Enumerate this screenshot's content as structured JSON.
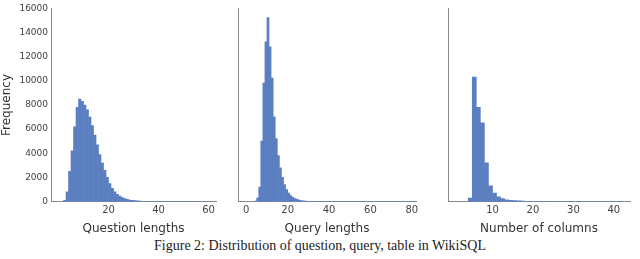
{
  "caption": "Figure 2: Distribution of question, query, table in WikiSQL",
  "chart_data": [
    {
      "type": "histogram",
      "x_label": "Question lengths",
      "y_label": "Frequency",
      "color": "#5b7fc0",
      "grid": false,
      "bins": [
        2,
        3,
        4,
        5,
        6,
        7,
        8,
        9,
        10,
        11,
        12,
        13,
        14,
        15,
        16,
        17,
        18,
        19,
        20,
        21,
        22,
        23,
        24,
        25,
        26,
        27,
        28,
        29,
        30,
        31,
        32,
        33,
        34,
        35,
        36,
        37,
        38,
        39,
        40,
        41,
        42,
        43,
        44,
        45,
        46,
        47,
        48,
        49,
        50,
        51,
        52,
        53,
        54,
        55,
        56,
        57,
        58
      ],
      "values": [
        100,
        800,
        2500,
        4200,
        6200,
        7800,
        8500,
        8300,
        8000,
        7600,
        7000,
        6300,
        5500,
        4700,
        3900,
        3200,
        2600,
        2000,
        1500,
        1100,
        800,
        600,
        450,
        330,
        250,
        180,
        130,
        100,
        75,
        55,
        40,
        30,
        22,
        16,
        12,
        9,
        7,
        5,
        4,
        3,
        3,
        2,
        2,
        1,
        1,
        1,
        1,
        1,
        0,
        0,
        1,
        0,
        0,
        0,
        0,
        1
      ],
      "xlim": [
        -3,
        63
      ],
      "xticks": [
        20,
        40,
        60
      ],
      "ylim": [
        0,
        16000
      ],
      "yticks": [
        0,
        2000,
        4000,
        6000,
        8000,
        10000,
        12000,
        14000,
        16000
      ]
    },
    {
      "type": "histogram",
      "x_label": "Query lengths",
      "color": "#5b7fc0",
      "grid": false,
      "tick_labels": "x",
      "bins": [
        4,
        5,
        6,
        7,
        8,
        9,
        10,
        11,
        12,
        13,
        14,
        15,
        16,
        17,
        18,
        19,
        20,
        21,
        22,
        23,
        24,
        25,
        26,
        27,
        28,
        29,
        30,
        31,
        32,
        33,
        34,
        35,
        36,
        37,
        38,
        39,
        40,
        41,
        42,
        43,
        44,
        45,
        46,
        47,
        48,
        49,
        50,
        51,
        52,
        53,
        54,
        55,
        56,
        57,
        58,
        59,
        60,
        61,
        62,
        63,
        64,
        65,
        66,
        67,
        68,
        69,
        70,
        71,
        72,
        73,
        74,
        75,
        76,
        77,
        78,
        79,
        80,
        81
      ],
      "values": [
        50,
        300,
        1200,
        5000,
        9800,
        13200,
        15200,
        12800,
        10200,
        7000,
        5200,
        3800,
        2800,
        2000,
        1400,
        1000,
        700,
        500,
        350,
        250,
        180,
        130,
        90,
        65,
        45,
        32,
        24,
        18,
        13,
        10,
        8,
        6,
        5,
        4,
        3,
        3,
        2,
        2,
        2,
        1,
        1,
        1,
        1,
        1,
        1,
        1,
        1,
        1,
        1,
        1,
        1,
        1,
        1,
        1,
        1,
        1,
        1,
        1,
        1,
        1,
        1,
        1,
        1,
        1,
        1,
        1,
        1,
        1,
        1,
        1,
        1,
        1,
        1,
        1,
        1,
        1,
        1
      ],
      "xlim": [
        -4,
        82
      ],
      "xticks": [
        0,
        20,
        40,
        60,
        80
      ],
      "ylim": [
        0,
        16000
      ],
      "yticks": [
        0,
        2000,
        4000,
        6000,
        8000,
        10000,
        12000,
        14000,
        16000
      ]
    },
    {
      "type": "histogram",
      "x_label": "Number of columns",
      "color": "#5b7fc0",
      "grid": false,
      "tick_labels": "x",
      "bins": [
        4,
        5,
        6,
        7,
        8,
        9,
        10,
        11,
        12,
        13,
        14,
        15,
        16,
        17,
        18,
        19,
        20,
        21,
        22,
        23,
        24,
        25,
        26,
        27,
        28,
        29,
        30,
        31,
        32,
        33,
        34,
        35,
        36,
        37,
        38,
        39,
        40,
        41,
        42,
        43,
        44
      ],
      "values": [
        300,
        10300,
        7800,
        6500,
        3200,
        1300,
        700,
        400,
        250,
        150,
        100,
        80,
        60,
        40,
        30,
        25,
        20,
        15,
        12,
        10,
        8,
        6,
        5,
        4,
        3,
        3,
        2,
        2,
        2,
        1,
        1,
        1,
        1,
        1,
        1,
        1,
        1,
        1,
        1,
        1
      ],
      "xlim": [
        -1,
        44
      ],
      "xticks": [
        10,
        20,
        30,
        40
      ],
      "ylim": [
        0,
        16000
      ],
      "yticks": [
        0,
        2000,
        4000,
        6000,
        8000,
        10000,
        12000,
        14000,
        16000
      ]
    }
  ]
}
